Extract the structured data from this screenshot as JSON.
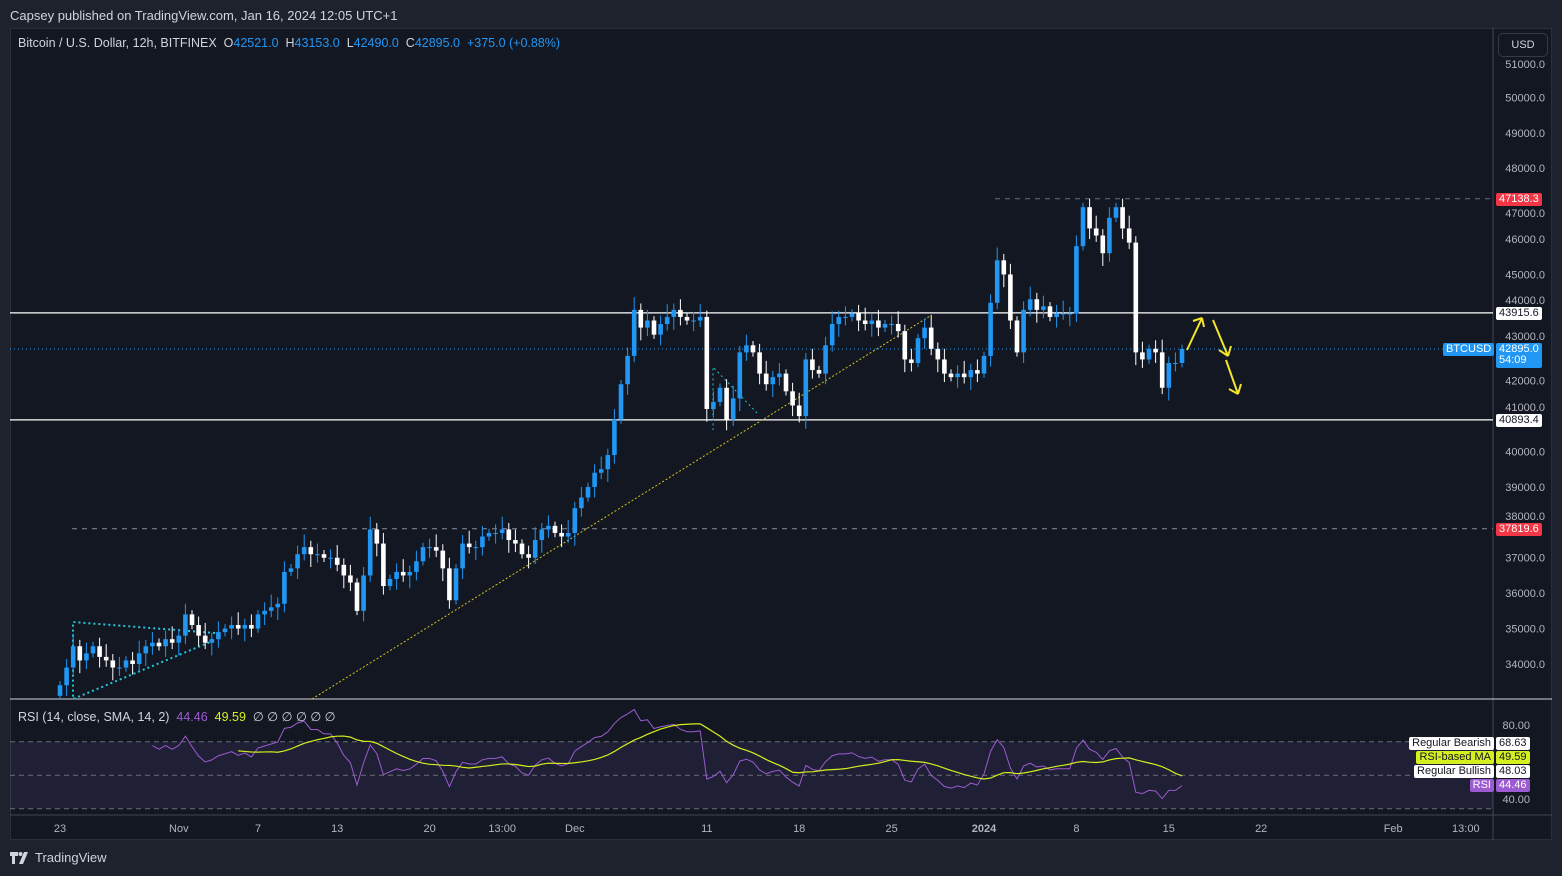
{
  "header": {
    "published": "Capsey published on TradingView.com, Jan 16, 2024 12:05 UTC+1"
  },
  "legend": {
    "symbol": "Bitcoin / U.S. Dollar, 12h, BITFINEX",
    "o_label": "O",
    "o": "42521.0",
    "h_label": "H",
    "h": "43153.0",
    "l_label": "L",
    "l": "42490.0",
    "c_label": "C",
    "c": "42895.0",
    "change": "+375.0 (+0.88%)"
  },
  "currency": "USD",
  "price_tags": {
    "resistance_high": "47138.3",
    "upper_level": "43915.6",
    "symbol": "BTCUSD",
    "last": "42895.0",
    "countdown": "54:09",
    "lower_level": "40893.4",
    "support_low": "37819.6"
  },
  "rsi": {
    "title": "RSI (14, close, SMA, 14, 2)",
    "value": "44.46",
    "ma_value": "49.59",
    "extras": "∅ ∅ ∅ ∅ ∅ ∅",
    "ticks": [
      "80.00",
      "40.00"
    ],
    "labels": [
      {
        "name": "Regular Bearish",
        "value": "68.63"
      },
      {
        "name": "RSI-based MA",
        "value": "49.59"
      },
      {
        "name": "Regular Bullish",
        "value": "48.03"
      },
      {
        "name": "RSI",
        "value": "44.46"
      }
    ]
  },
  "footer": {
    "brand": "TradingView"
  },
  "colors": {
    "up": "#2196f3",
    "down": "#ffffff",
    "rsi": "#9c5bd0",
    "rsi_ma": "#d4f01e",
    "accent_red": "#f23645"
  },
  "chart_data": {
    "type": "candlestick",
    "title": "Bitcoin / U.S. Dollar, 12h, BITFINEX",
    "start": "Oct 23 2023",
    "interval": "12h",
    "ylim": [
      33000,
      51500
    ],
    "y_ticks": [
      34000,
      35000,
      36000,
      37000,
      38000,
      39000,
      40000,
      41000,
      42000,
      43000,
      44000,
      45000,
      46000,
      47000,
      48000,
      49000,
      50000,
      51000
    ],
    "x_ticks": [
      {
        "label": "23",
        "day": 0
      },
      {
        "label": "Nov",
        "day": 9
      },
      {
        "label": "7",
        "day": 15
      },
      {
        "label": "13",
        "day": 21
      },
      {
        "label": "20",
        "day": 28
      },
      {
        "label": "13:00",
        "day": 33.5
      },
      {
        "label": "Dec",
        "day": 39
      },
      {
        "label": "11",
        "day": 49
      },
      {
        "label": "18",
        "day": 56
      },
      {
        "label": "25",
        "day": 63
      },
      {
        "label": "2024",
        "day": 70
      },
      {
        "label": "8",
        "day": 77
      },
      {
        "label": "15",
        "day": 84
      },
      {
        "label": "22",
        "day": 91
      },
      {
        "label": "Feb",
        "day": 101
      },
      {
        "label": "13:00",
        "day": 106.5
      }
    ],
    "closes": [
      33400,
      33900,
      34500,
      34100,
      34300,
      34500,
      34200,
      34100,
      33900,
      33900,
      34100,
      34000,
      34300,
      34500,
      34600,
      34500,
      34700,
      34600,
      34800,
      35400,
      35100,
      34800,
      34600,
      34700,
      34900,
      35000,
      35100,
      35000,
      35100,
      35000,
      35400,
      35500,
      35600,
      35700,
      36600,
      36700,
      37100,
      37300,
      37100,
      37100,
      37000,
      37000,
      36800,
      36500,
      36300,
      35500,
      36500,
      37800,
      37400,
      36200,
      36400,
      36600,
      36500,
      36600,
      36900,
      37300,
      37300,
      37200,
      36700,
      35800,
      36700,
      37400,
      37300,
      37300,
      37600,
      37700,
      37700,
      37800,
      37500,
      37400,
      37100,
      37000,
      37500,
      37800,
      37900,
      37700,
      37600,
      37700,
      38400,
      38700,
      39000,
      39400,
      39500,
      39900,
      40900,
      41900,
      42700,
      44000,
      43500,
      43700,
      43300,
      43600,
      43800,
      44000,
      43800,
      43700,
      43700,
      43800,
      41200,
      41400,
      41800,
      40900,
      41500,
      42800,
      43000,
      42800,
      42200,
      41900,
      42100,
      42200,
      41700,
      41300,
      41000,
      42600,
      42300,
      42200,
      43000,
      43600,
      43800,
      43800,
      43900,
      43700,
      43600,
      43700,
      43500,
      43600,
      43600,
      43400,
      42600,
      42500,
      43200,
      43500,
      42900,
      42600,
      42200,
      42100,
      42200,
      42100,
      42300,
      42200,
      42700,
      44200,
      45400,
      45000,
      43700,
      42800,
      44000,
      44300,
      44000,
      44100,
      43800,
      43900,
      43900,
      43900,
      45800,
      46900,
      46300,
      46100,
      45600,
      46600,
      46900,
      46300,
      45900,
      42800,
      42600,
      42900,
      42800,
      41800,
      42500,
      42500,
      42895
    ],
    "levels": [
      {
        "price": 43915.6,
        "style": "solid"
      },
      {
        "price": 40893.4,
        "style": "solid"
      },
      {
        "price": 47138.3,
        "style": "dashed"
      },
      {
        "price": 37819.6,
        "style": "dashed"
      }
    ]
  }
}
